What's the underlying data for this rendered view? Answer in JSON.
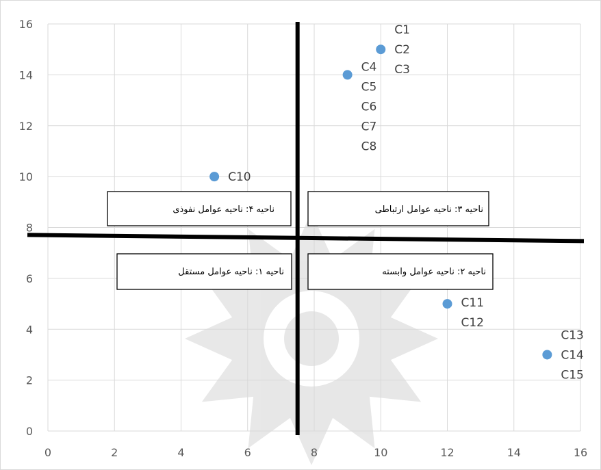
{
  "chart_data": {
    "type": "scatter",
    "title": "",
    "xlabel": "",
    "ylabel": "",
    "xlim": [
      0,
      16
    ],
    "ylim": [
      0,
      16
    ],
    "x_ticks": [
      "0",
      "2",
      "4",
      "6",
      "8",
      "10",
      "12",
      "14",
      "16"
    ],
    "y_ticks": [
      "0",
      "2",
      "4",
      "6",
      "8",
      "10",
      "12",
      "14",
      "16"
    ],
    "grid": true,
    "legend": "none",
    "marker_color": "#5b9bd5",
    "divider_x": 7.5,
    "divider_y": 7.6,
    "points": [
      {
        "x": 10,
        "y": 15,
        "labels": [
          "C1",
          "C2",
          "C3"
        ]
      },
      {
        "x": 9,
        "y": 14,
        "labels": [
          "C4",
          "C5",
          "C6",
          "C7",
          "C8"
        ]
      },
      {
        "x": 5,
        "y": 10,
        "labels": [
          "C10"
        ]
      },
      {
        "x": 12,
        "y": 5,
        "labels": [
          "C11",
          "C12"
        ]
      },
      {
        "x": 15,
        "y": 3,
        "labels": [
          "C13",
          "C14",
          "C15"
        ]
      }
    ],
    "regions": [
      {
        "label": "ناحیه ۴: ناحیه عوامل نفوذی"
      },
      {
        "label": "ناحیه ۳: ناحیه عوامل ارتباطی"
      },
      {
        "label": "ناحیه ۱: ناحیه عوامل مستقل"
      },
      {
        "label": "ناحیه ۲: ناحیه عوامل وابسته"
      }
    ]
  }
}
